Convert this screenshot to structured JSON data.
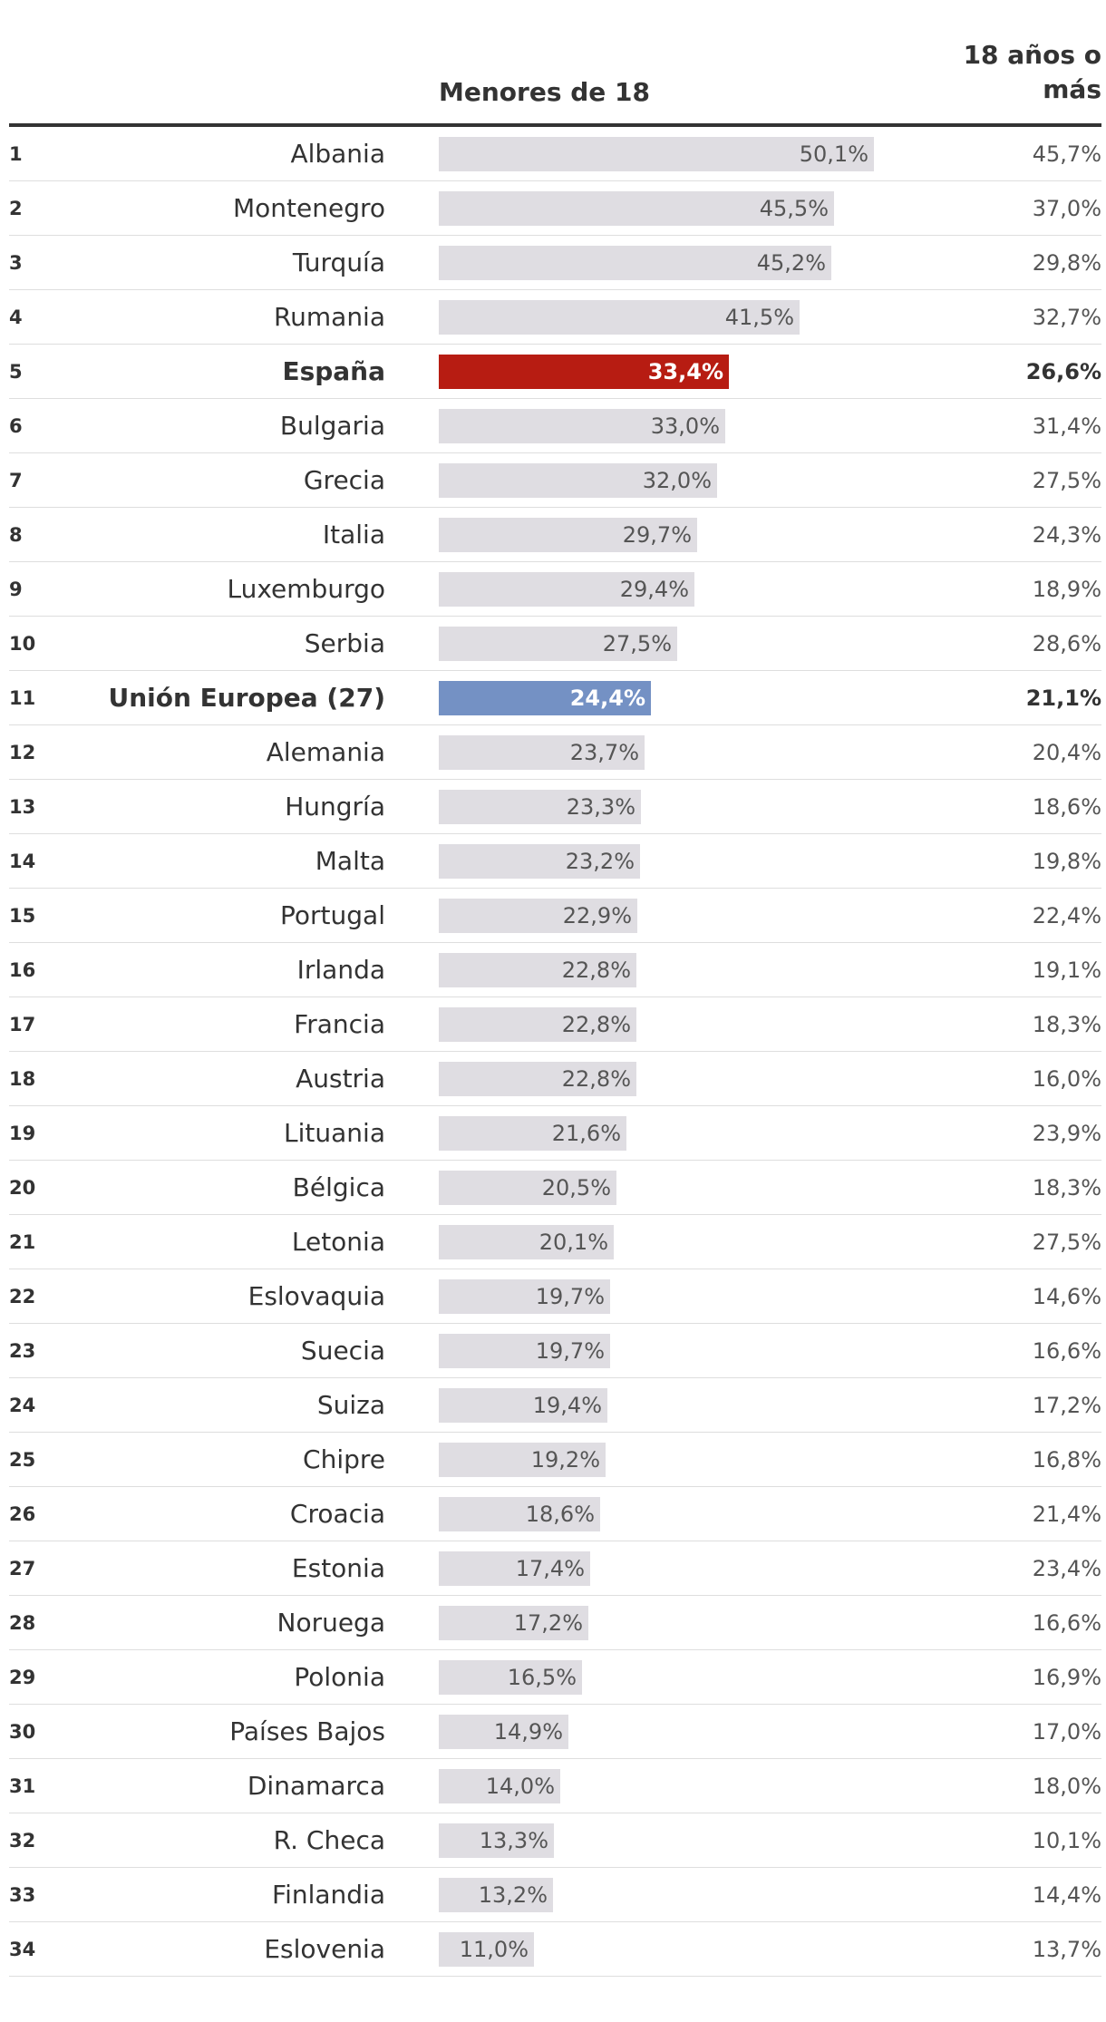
{
  "chart_data": {
    "type": "table",
    "columns": [
      "",
      "",
      "Menores de 18",
      "18 años o más"
    ],
    "header": {
      "col_minors": "Menores de 18",
      "col_adults": "18 años o más"
    },
    "bar_max": 50.1,
    "colors": {
      "bar_default": "#dfdde2",
      "bar_spain": "#b71c12",
      "bar_eu": "#7491c4"
    },
    "rows": [
      {
        "rank": "1",
        "name": "Albania",
        "minors": 50.1,
        "minors_label": "50,1%",
        "adults_label": "45,7%"
      },
      {
        "rank": "2",
        "name": "Montenegro",
        "minors": 45.5,
        "minors_label": "45,5%",
        "adults_label": "37,0%"
      },
      {
        "rank": "3",
        "name": "Turquía",
        "minors": 45.2,
        "minors_label": "45,2%",
        "adults_label": "29,8%"
      },
      {
        "rank": "4",
        "name": "Rumania",
        "minors": 41.5,
        "minors_label": "41,5%",
        "adults_label": "32,7%"
      },
      {
        "rank": "5",
        "name": "España",
        "minors": 33.4,
        "minors_label": "33,4%",
        "adults_label": "26,6%",
        "highlight": "spain"
      },
      {
        "rank": "6",
        "name": "Bulgaria",
        "minors": 33.0,
        "minors_label": "33,0%",
        "adults_label": "31,4%"
      },
      {
        "rank": "7",
        "name": "Grecia",
        "minors": 32.0,
        "minors_label": "32,0%",
        "adults_label": "27,5%"
      },
      {
        "rank": "8",
        "name": "Italia",
        "minors": 29.7,
        "minors_label": "29,7%",
        "adults_label": "24,3%"
      },
      {
        "rank": "9",
        "name": "Luxemburgo",
        "minors": 29.4,
        "minors_label": "29,4%",
        "adults_label": "18,9%"
      },
      {
        "rank": "10",
        "name": "Serbia",
        "minors": 27.5,
        "minors_label": "27,5%",
        "adults_label": "28,6%"
      },
      {
        "rank": "11",
        "name": "Unión Europea (27)",
        "minors": 24.4,
        "minors_label": "24,4%",
        "adults_label": "21,1%",
        "highlight": "eu"
      },
      {
        "rank": "12",
        "name": "Alemania",
        "minors": 23.7,
        "minors_label": "23,7%",
        "adults_label": "20,4%"
      },
      {
        "rank": "13",
        "name": "Hungría",
        "minors": 23.3,
        "minors_label": "23,3%",
        "adults_label": "18,6%"
      },
      {
        "rank": "14",
        "name": "Malta",
        "minors": 23.2,
        "minors_label": "23,2%",
        "adults_label": "19,8%"
      },
      {
        "rank": "15",
        "name": "Portugal",
        "minors": 22.9,
        "minors_label": "22,9%",
        "adults_label": "22,4%"
      },
      {
        "rank": "16",
        "name": "Irlanda",
        "minors": 22.8,
        "minors_label": "22,8%",
        "adults_label": "19,1%"
      },
      {
        "rank": "17",
        "name": "Francia",
        "minors": 22.8,
        "minors_label": "22,8%",
        "adults_label": "18,3%"
      },
      {
        "rank": "18",
        "name": "Austria",
        "minors": 22.8,
        "minors_label": "22,8%",
        "adults_label": "16,0%"
      },
      {
        "rank": "19",
        "name": "Lituania",
        "minors": 21.6,
        "minors_label": "21,6%",
        "adults_label": "23,9%"
      },
      {
        "rank": "20",
        "name": "Bélgica",
        "minors": 20.5,
        "minors_label": "20,5%",
        "adults_label": "18,3%"
      },
      {
        "rank": "21",
        "name": "Letonia",
        "minors": 20.1,
        "minors_label": "20,1%",
        "adults_label": "27,5%"
      },
      {
        "rank": "22",
        "name": "Eslovaquia",
        "minors": 19.7,
        "minors_label": "19,7%",
        "adults_label": "14,6%"
      },
      {
        "rank": "23",
        "name": "Suecia",
        "minors": 19.7,
        "minors_label": "19,7%",
        "adults_label": "16,6%"
      },
      {
        "rank": "24",
        "name": "Suiza",
        "minors": 19.4,
        "minors_label": "19,4%",
        "adults_label": "17,2%"
      },
      {
        "rank": "25",
        "name": "Chipre",
        "minors": 19.2,
        "minors_label": "19,2%",
        "adults_label": "16,8%"
      },
      {
        "rank": "26",
        "name": "Croacia",
        "minors": 18.6,
        "minors_label": "18,6%",
        "adults_label": "21,4%"
      },
      {
        "rank": "27",
        "name": "Estonia",
        "minors": 17.4,
        "minors_label": "17,4%",
        "adults_label": "23,4%"
      },
      {
        "rank": "28",
        "name": "Noruega",
        "minors": 17.2,
        "minors_label": "17,2%",
        "adults_label": "16,6%"
      },
      {
        "rank": "29",
        "name": "Polonia",
        "minors": 16.5,
        "minors_label": "16,5%",
        "adults_label": "16,9%"
      },
      {
        "rank": "30",
        "name": "Países Bajos",
        "minors": 14.9,
        "minors_label": "14,9%",
        "adults_label": "17,0%"
      },
      {
        "rank": "31",
        "name": "Dinamarca",
        "minors": 14.0,
        "minors_label": "14,0%",
        "adults_label": "18,0%"
      },
      {
        "rank": "32",
        "name": "R. Checa",
        "minors": 13.3,
        "minors_label": "13,3%",
        "adults_label": "10,1%"
      },
      {
        "rank": "33",
        "name": "Finlandia",
        "minors": 13.2,
        "minors_label": "13,2%",
        "adults_label": "14,4%"
      },
      {
        "rank": "34",
        "name": "Eslovenia",
        "minors": 11.0,
        "minors_label": "11,0%",
        "adults_label": "13,7%"
      }
    ]
  }
}
